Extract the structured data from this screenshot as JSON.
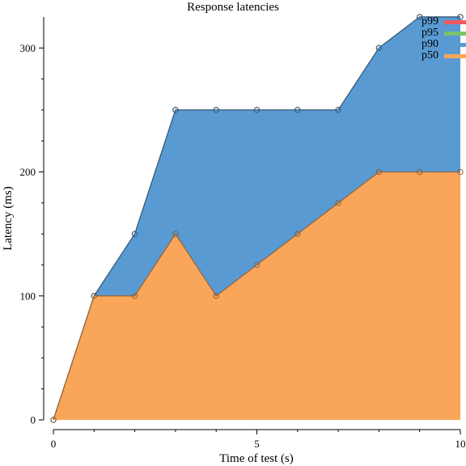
{
  "chart_data": {
    "type": "area",
    "title": "Response latencies",
    "xlabel": "Time of test (s)",
    "ylabel": "Latency (ms)",
    "xlim": [
      0,
      10
    ],
    "ylim": [
      0,
      325
    ],
    "x_ticks": [
      0,
      5,
      10
    ],
    "y_ticks": [
      0,
      100,
      200,
      300
    ],
    "grid": false,
    "legend_position": "top-right",
    "x": [
      0,
      1,
      2,
      3,
      4,
      5,
      6,
      7,
      8,
      9,
      10
    ],
    "series": [
      {
        "name": "p50",
        "color": "#f9a65a",
        "values": [
          0,
          100,
          100,
          150,
          100,
          125,
          150,
          175,
          200,
          200,
          200
        ]
      },
      {
        "name": "p90",
        "color": "#599ad3",
        "values": [
          0,
          100,
          150,
          250,
          250,
          250,
          250,
          250,
          300,
          325,
          325
        ]
      },
      {
        "name": "p95",
        "color": "#79c36a",
        "values": [
          0,
          100,
          150,
          250,
          250,
          250,
          250,
          250,
          300,
          325,
          325
        ]
      },
      {
        "name": "p99",
        "color": "#f1595f",
        "values": [
          0,
          100,
          150,
          250,
          250,
          250,
          250,
          250,
          300,
          325,
          325
        ]
      }
    ]
  }
}
